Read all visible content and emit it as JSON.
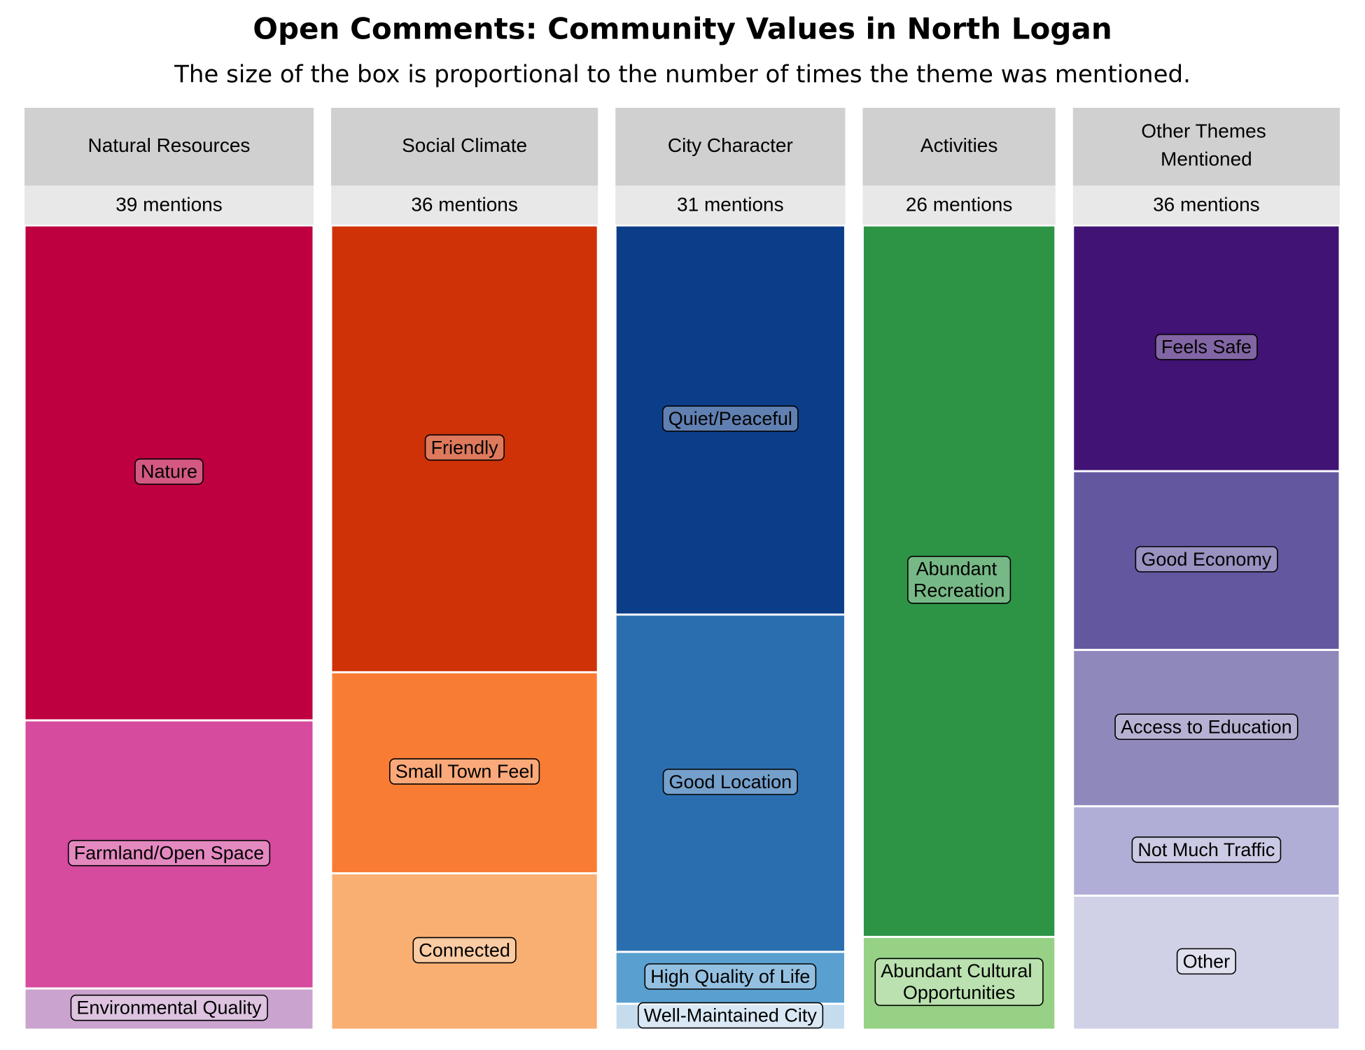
{
  "chart_data": {
    "type": "mosaic",
    "title": "Open Comments: Community Values in North Logan",
    "subtitle": "The size of the box is proportional to the number of times the theme was mentioned.",
    "categories": [
      "Natural Resources",
      "Social Climate",
      "City Character",
      "Activities",
      "Other Themes Mentioned"
    ],
    "values": [
      39,
      36,
      31,
      26,
      36
    ],
    "value_labels": [
      "39 mentions",
      "36 mentions",
      "31 mentions",
      "26 mentions",
      "36 mentions"
    ],
    "groups": [
      {
        "segments": [
          {
            "name": "Nature",
            "value": 24,
            "color": "#be0040"
          },
          {
            "name": "Farmland/Open Space",
            "value": 13,
            "color": "#d64b9e"
          },
          {
            "name": "Environmental Quality",
            "value": 2,
            "color": "#cba3cf"
          }
        ]
      },
      {
        "segments": [
          {
            "name": "Friendly",
            "value": 20,
            "color": "#ce3206"
          },
          {
            "name": "Small Town Feel",
            "value": 9,
            "color": "#f97c34"
          },
          {
            "name": "Connected",
            "value": 7,
            "color": "#f9af72"
          }
        ]
      },
      {
        "segments": [
          {
            "name": "Quiet/Peaceful",
            "value": 15,
            "color": "#0c3d89"
          },
          {
            "name": "Good Location",
            "value": 13,
            "color": "#2a6eb0"
          },
          {
            "name": "High Quality of Life",
            "value": 2,
            "color": "#599fcf"
          },
          {
            "name": "Well-Maintained City",
            "value": 1,
            "color": "#c5dcef"
          }
        ]
      },
      {
        "segments": [
          {
            "name": "Abundant Recreation",
            "value": 23,
            "color": "#2d9445"
          },
          {
            "name": "Abundant Cultural Opportunities",
            "value": 3,
            "color": "#96d185"
          }
        ]
      },
      {
        "segments": [
          {
            "name": "Feels Safe",
            "value": 11,
            "color": "#401374"
          },
          {
            "name": "Good Economy",
            "value": 8,
            "color": "#63579f"
          },
          {
            "name": "Access to Education",
            "value": 7,
            "color": "#8f88bb"
          },
          {
            "name": "Not Much Traffic",
            "value": 4,
            "color": "#b0aed6"
          },
          {
            "name": "Other",
            "value": 6,
            "color": "#d0d1e6"
          }
        ]
      }
    ]
  }
}
